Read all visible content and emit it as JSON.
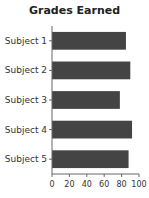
{
  "chart_data": {
    "type": "bar",
    "orientation": "horizontal",
    "title": "Grades Earned",
    "categories": [
      "Subject 5",
      "Subject 4",
      "Subject 3",
      "Subject 2",
      "Subject 1"
    ],
    "values": [
      88,
      92,
      78,
      90,
      85
    ],
    "color": "#444444",
    "xlim": [
      0,
      100
    ],
    "xticks": [
      0,
      20,
      40,
      60,
      80,
      100
    ],
    "grid": false
  }
}
